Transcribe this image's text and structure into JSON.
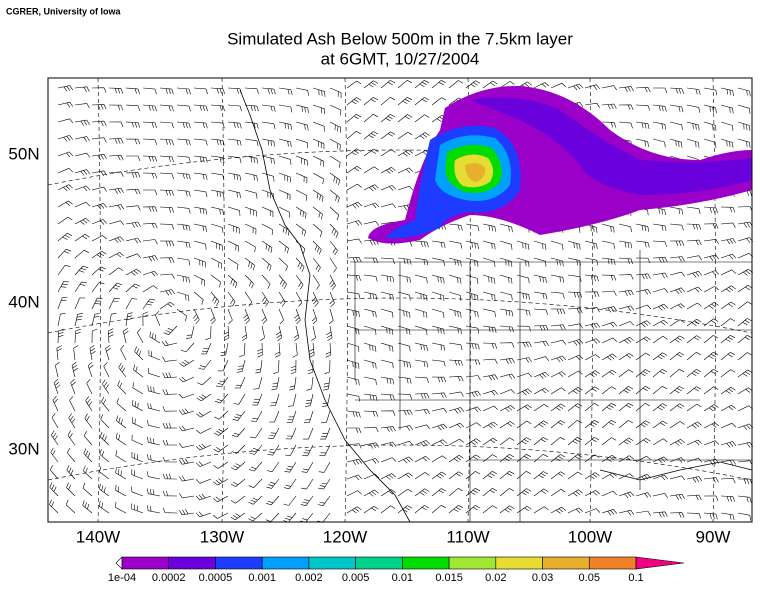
{
  "header": {
    "credit": "CGRER, University of Iowa",
    "title": "Simulated Ash Below 500m in the 7.5km layer",
    "subtitle": "at 6GMT, 10/27/2004"
  },
  "axes": {
    "longitudes": [
      "140W",
      "130W",
      "120W",
      "110W",
      "100W",
      "90W"
    ],
    "latitudes": [
      "50N",
      "40N",
      "30N"
    ]
  },
  "colorbar": {
    "labels": [
      "1e-04",
      "0.0002",
      "0.0005",
      "0.001",
      "0.002",
      "0.005",
      "0.01",
      "0.015",
      "0.02",
      "0.03",
      "0.05",
      "0.1"
    ],
    "colors": [
      "#9a00c8",
      "#6a00dc",
      "#1e3cff",
      "#00a0ff",
      "#00c8c8",
      "#00d28c",
      "#00dc00",
      "#a0e632",
      "#e6dc32",
      "#e6af2d",
      "#f08228",
      "#fa3c3c",
      "#f00082"
    ]
  }
}
